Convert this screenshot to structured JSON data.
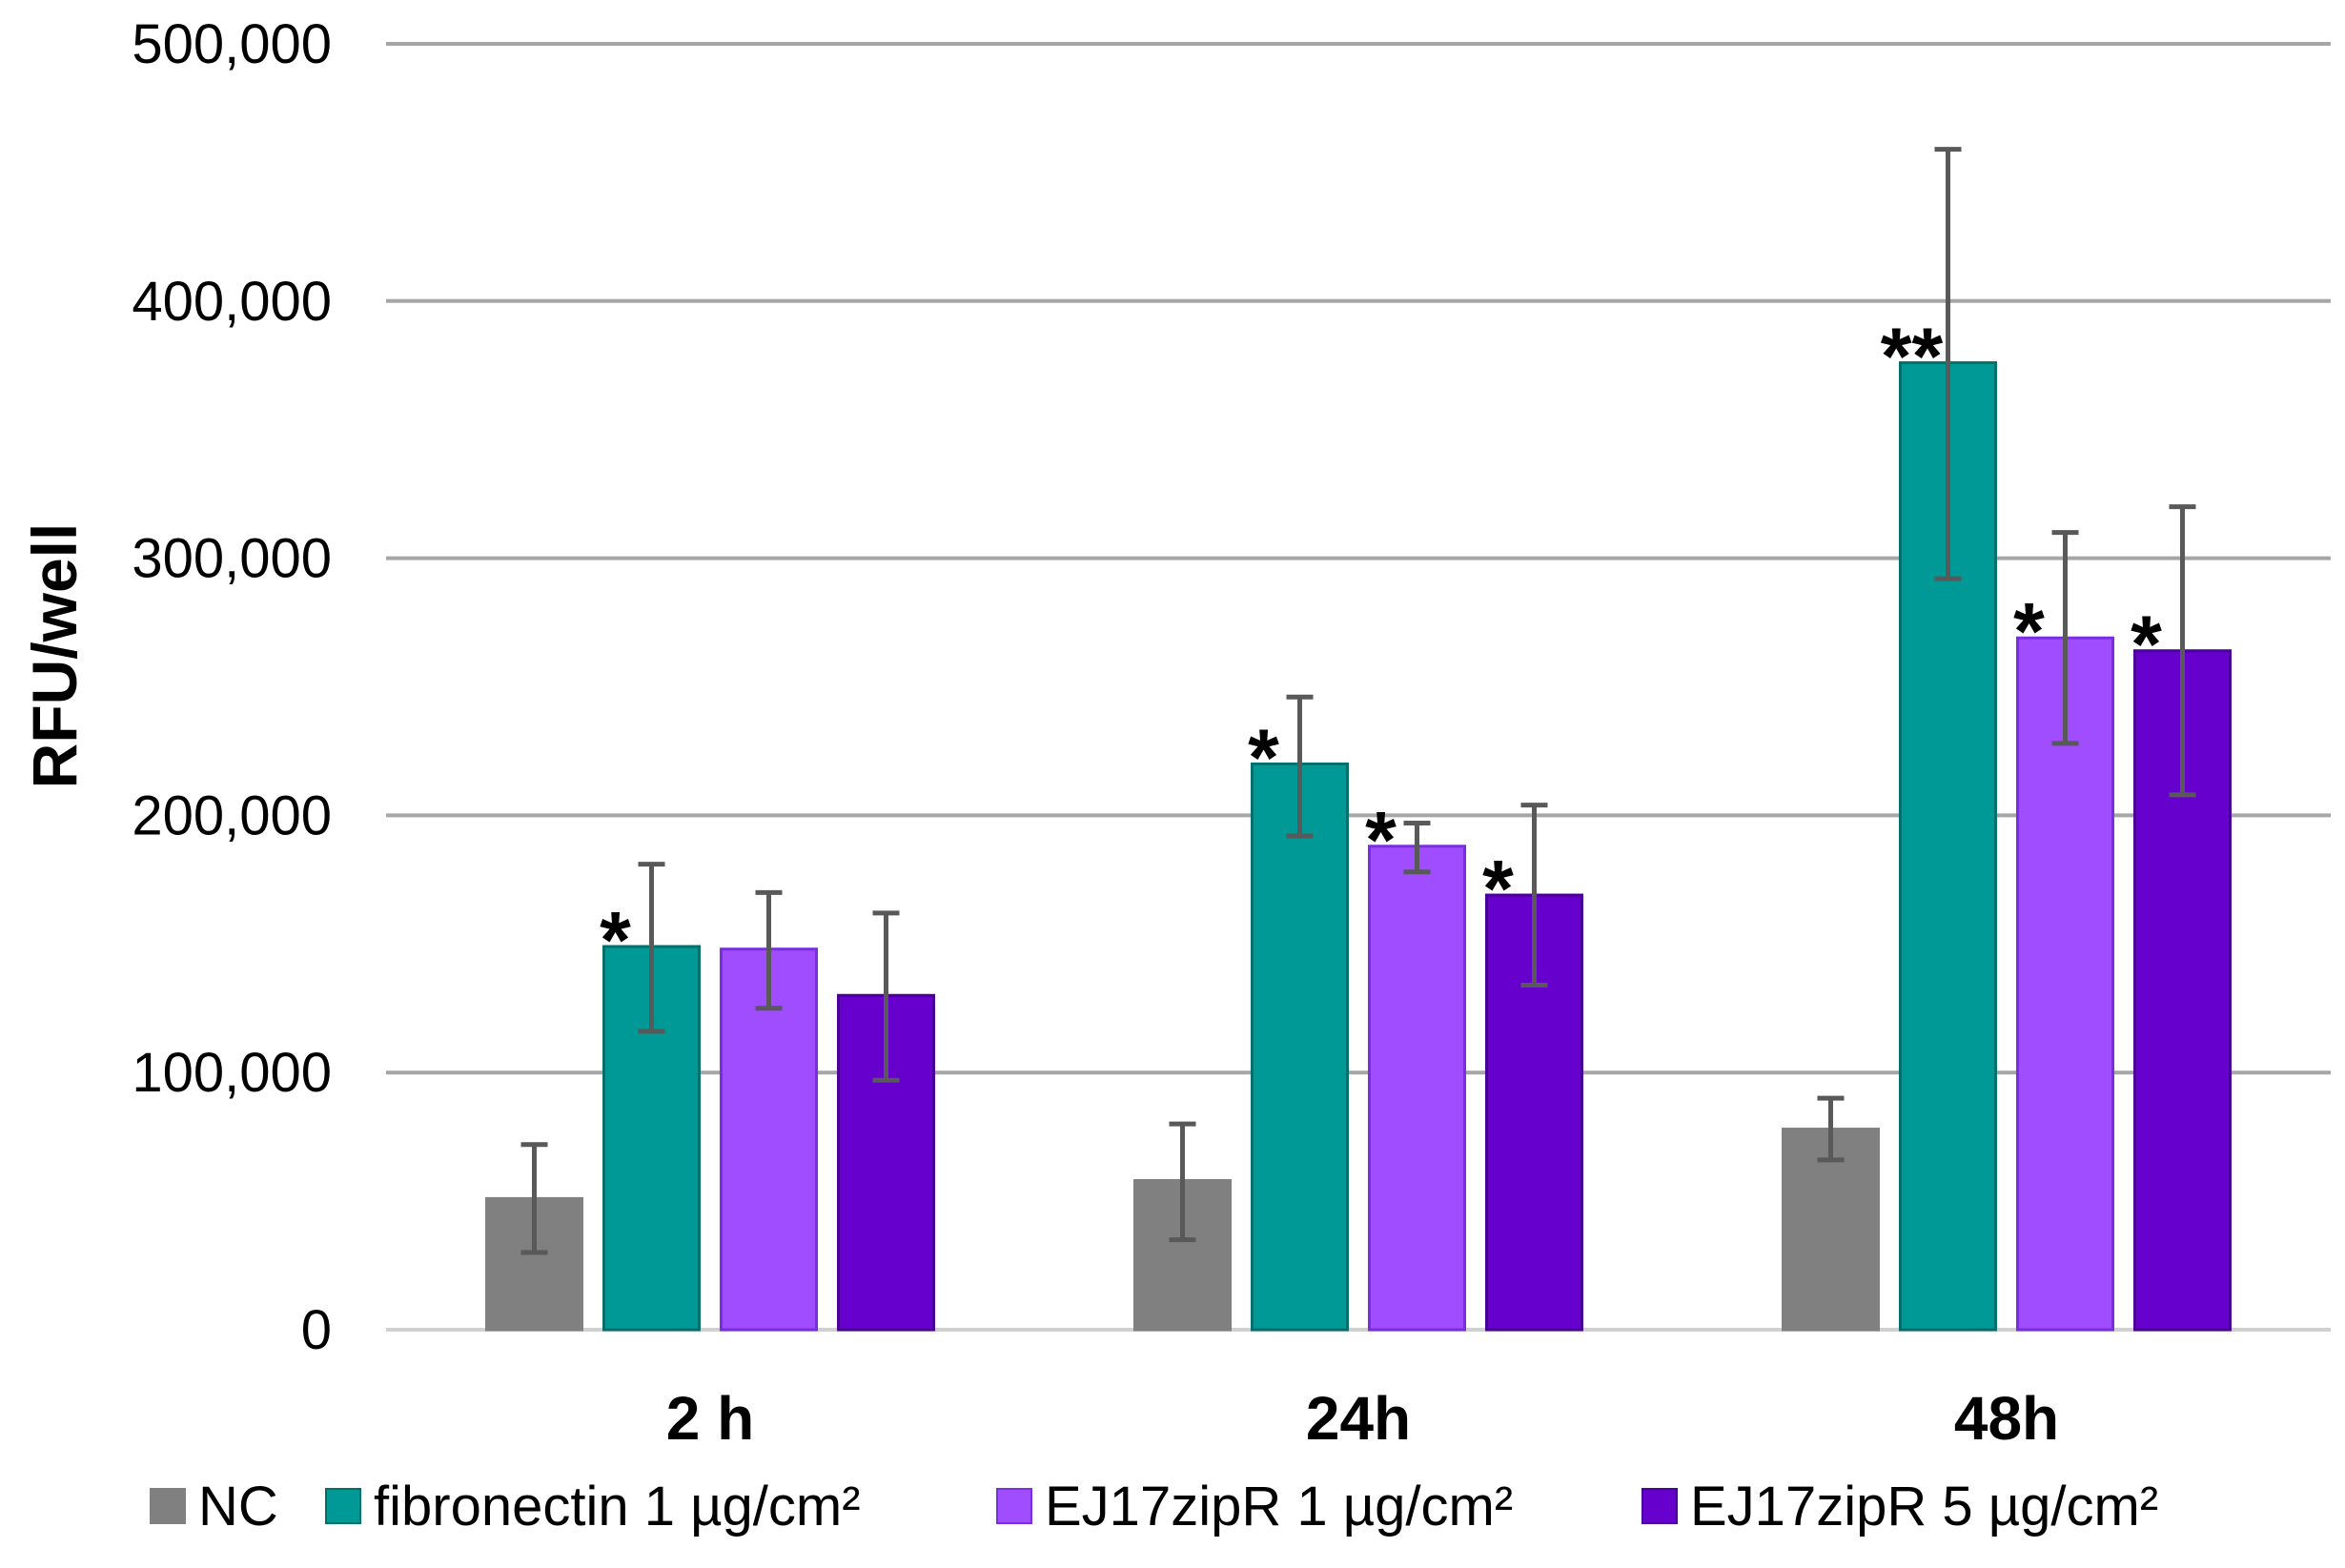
{
  "chart_data": {
    "type": "bar",
    "title": "",
    "xlabel": "",
    "ylabel": "RFU/well",
    "ylim": [
      0,
      500000
    ],
    "yticks": [
      0,
      100000,
      200000,
      300000,
      400000,
      500000
    ],
    "ytick_labels": [
      "0",
      "100,000",
      "200,000",
      "300,000",
      "400,000",
      "500,000"
    ],
    "grid": true,
    "legend_position": "bottom",
    "categories": [
      "2 h",
      "24h",
      "48h"
    ],
    "series": [
      {
        "name": "NC",
        "color": "#808080",
        "values": [
          51000,
          58000,
          78000
        ],
        "err_low": [
          30000,
          35000,
          66000
        ],
        "err_high": [
          72000,
          80000,
          90000
        ],
        "significance": [
          "",
          "",
          ""
        ]
      },
      {
        "name": "fibronectin 1 µg/cm²",
        "color": "#009995",
        "values": [
          149000,
          220000,
          376000
        ],
        "err_low": [
          116000,
          192000,
          292000
        ],
        "err_high": [
          181000,
          246000,
          459000
        ],
        "significance": [
          "*",
          "*",
          "**"
        ]
      },
      {
        "name": "EJ17zipR 1 µg/cm²",
        "color": "#A04DFF",
        "values": [
          148000,
          188000,
          269000
        ],
        "err_low": [
          125000,
          178000,
          228000
        ],
        "err_high": [
          170000,
          197000,
          310000
        ],
        "significance": [
          "",
          "*",
          "*"
        ]
      },
      {
        "name": "EJ17zipR 5 µg/cm²",
        "color": "#6600CC",
        "values": [
          130000,
          169000,
          264000
        ],
        "err_low": [
          97000,
          134000,
          208000
        ],
        "err_high": [
          162000,
          204000,
          320000
        ],
        "significance": [
          "",
          "*",
          "*"
        ]
      }
    ]
  }
}
